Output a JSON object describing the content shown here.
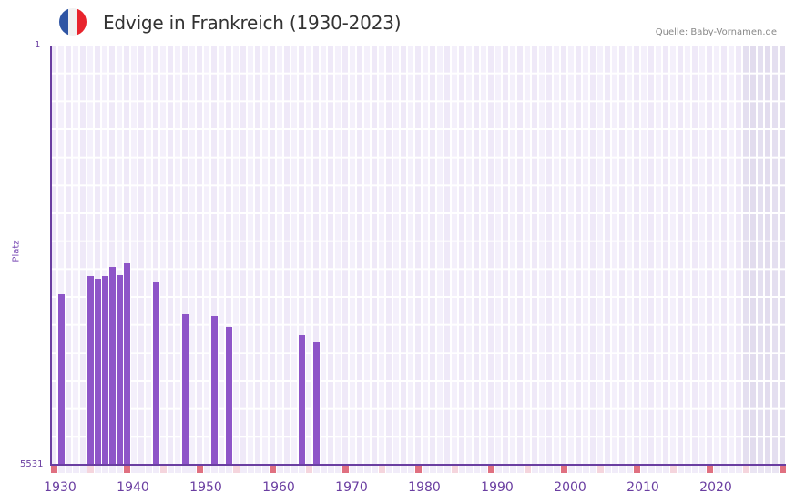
{
  "header": {
    "title": "Edvige in Frankreich (1930-2023)",
    "source": "Quelle: Baby-Vornamen.de",
    "flag_colors": [
      "#2f55a4",
      "#f2f2f2",
      "#e8242d"
    ]
  },
  "axis": {
    "y_top": "1",
    "y_bottom": "5531",
    "y_title": "Platz",
    "x_ticks": [
      "1930",
      "1940",
      "1950",
      "1960",
      "1970",
      "1980",
      "1990",
      "2000",
      "2010",
      "2020"
    ]
  },
  "colors": {
    "bar": "#8e55c8",
    "axis": "#6a3ea1",
    "decade_marker": "#e07080",
    "half_decade_marker": "#f5d5dd",
    "grid_cell_a": "#efe9f8",
    "grid_cell_b": "#f4f0fb",
    "future_shade": "#e4dff0"
  },
  "chart_data": {
    "type": "bar",
    "title": "Edvige in Frankreich (1930-2023)",
    "xlabel": "",
    "ylabel": "Platz",
    "y_inverted": true,
    "ylim": [
      1,
      5531
    ],
    "xlim": [
      1929,
      2029
    ],
    "grid": true,
    "categories": [
      "1930",
      "1934",
      "1935",
      "1936",
      "1937",
      "1938",
      "1939",
      "1943",
      "1947",
      "1951",
      "1953",
      "1963",
      "1965"
    ],
    "values": [
      3283,
      3043,
      3079,
      3043,
      2922,
      3031,
      2874,
      3127,
      3548,
      3572,
      3716,
      3824,
      3908
    ],
    "source": "Quelle: Baby-Vornamen.de"
  }
}
